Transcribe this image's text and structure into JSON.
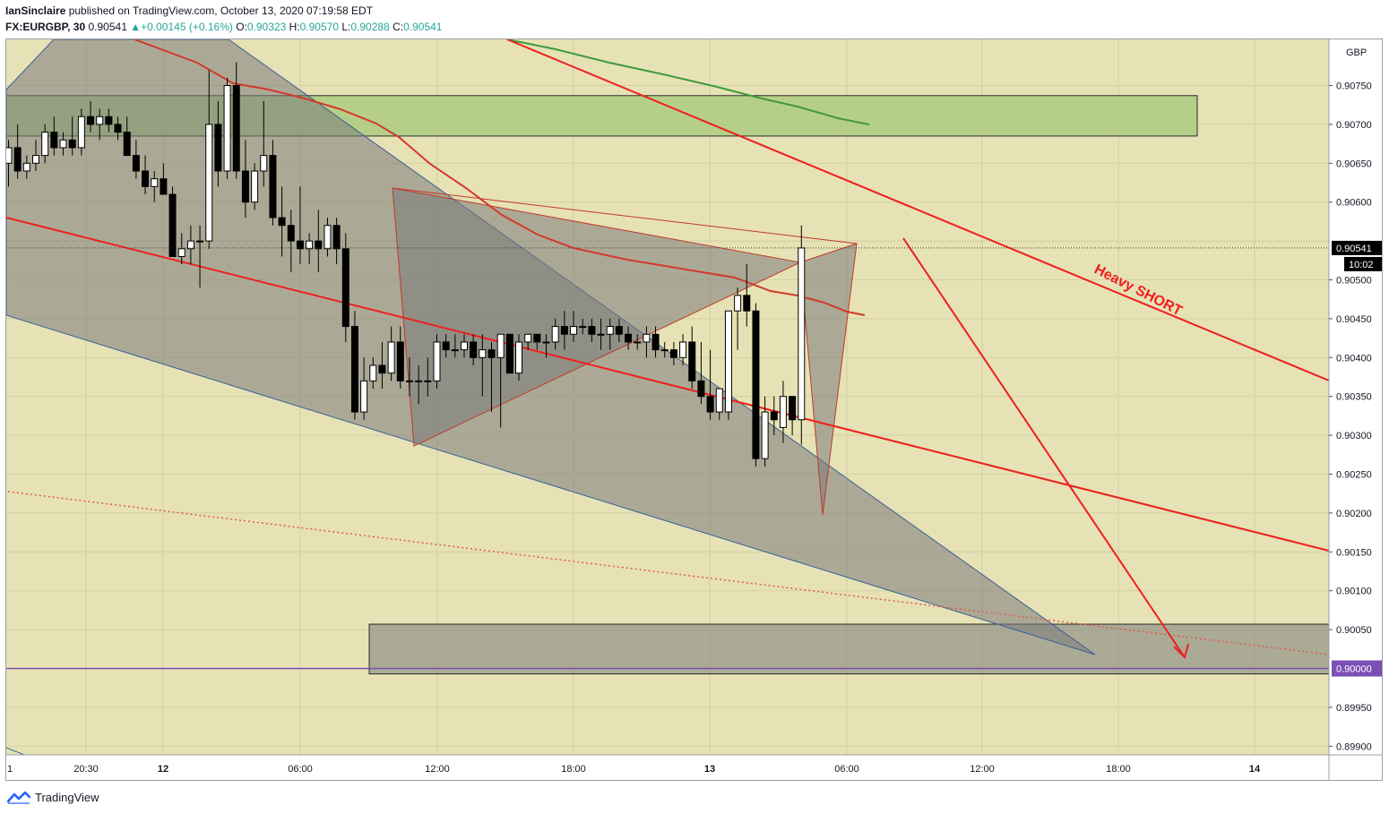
{
  "header": {
    "author": "IanSinclaire",
    "published": " published on TradingView.com, October 13, 2020 07:19:58 EDT",
    "symbol": "FX:EURGBP, 30",
    "last": "0.90541",
    "arrow": "▲",
    "change": "+0.00145 (+0.16%)",
    "o_label": "O:",
    "o_value": "0.90323",
    "h_label": "H:",
    "h_value": "0.90570",
    "l_label": "L:",
    "l_value": "0.90288",
    "c_label": "C:",
    "c_value": "0.90541"
  },
  "footer": {
    "brand": "TradingView"
  },
  "colors": {
    "background": "#e6e2b5",
    "grid": "#d3cfa5",
    "bull_candle": "#ffffff",
    "bear_candle": "#000000",
    "ma_red": "#d3392e",
    "ma_green": "#3f9a3c",
    "trend_red": "#f01e1e",
    "pattern_fill": "#7a7a7a",
    "supply_zone": "#a5c87a",
    "demand_zone": "#8c8c84",
    "level_purple": "#7b4fb5"
  },
  "chart_data": {
    "type": "candlestick",
    "symbol": "FX:EURGBP",
    "timeframe": "30",
    "currency_label": "GBP",
    "x_ticks": [
      "1",
      "20:30",
      "12",
      "06:00",
      "12:00",
      "18:00",
      "13",
      "06:00",
      "12:00",
      "18:00",
      "14"
    ],
    "y_ticks": [
      "0.90750",
      "0.90700",
      "0.90650",
      "0.90600",
      "0.90500",
      "0.90450",
      "0.90400",
      "0.90350",
      "0.90300",
      "0.90250",
      "0.90200",
      "0.90150",
      "0.90100",
      "0.90050",
      "0.89950",
      "0.89900"
    ],
    "ylim": [
      0.89885,
      0.90805
    ],
    "last_price": {
      "value": "0.90541",
      "countdown": "10:02"
    },
    "level_label": "0.90000",
    "annotation": "Heavy SHORT",
    "candles": [
      {
        "o": 0.9065,
        "h": 0.9068,
        "l": 0.9062,
        "c": 0.9067
      },
      {
        "o": 0.9067,
        "h": 0.907,
        "l": 0.9063,
        "c": 0.9064
      },
      {
        "o": 0.9064,
        "h": 0.9066,
        "l": 0.9063,
        "c": 0.9065
      },
      {
        "o": 0.9065,
        "h": 0.9068,
        "l": 0.9064,
        "c": 0.9066
      },
      {
        "o": 0.9066,
        "h": 0.907,
        "l": 0.9065,
        "c": 0.9069
      },
      {
        "o": 0.9069,
        "h": 0.9071,
        "l": 0.9066,
        "c": 0.9067
      },
      {
        "o": 0.9067,
        "h": 0.9069,
        "l": 0.9066,
        "c": 0.9068
      },
      {
        "o": 0.9068,
        "h": 0.9071,
        "l": 0.9066,
        "c": 0.9067
      },
      {
        "o": 0.9067,
        "h": 0.9072,
        "l": 0.9066,
        "c": 0.9071
      },
      {
        "o": 0.9071,
        "h": 0.9073,
        "l": 0.9069,
        "c": 0.907
      },
      {
        "o": 0.907,
        "h": 0.9072,
        "l": 0.9068,
        "c": 0.9071
      },
      {
        "o": 0.9071,
        "h": 0.9072,
        "l": 0.9069,
        "c": 0.907
      },
      {
        "o": 0.907,
        "h": 0.9071,
        "l": 0.9068,
        "c": 0.9069
      },
      {
        "o": 0.9069,
        "h": 0.9071,
        "l": 0.9066,
        "c": 0.9066
      },
      {
        "o": 0.9066,
        "h": 0.9068,
        "l": 0.9063,
        "c": 0.9064
      },
      {
        "o": 0.9064,
        "h": 0.9066,
        "l": 0.9061,
        "c": 0.9062
      },
      {
        "o": 0.9062,
        "h": 0.9064,
        "l": 0.906,
        "c": 0.9063
      },
      {
        "o": 0.9063,
        "h": 0.9065,
        "l": 0.9061,
        "c": 0.9061
      },
      {
        "o": 0.9061,
        "h": 0.9062,
        "l": 0.9053,
        "c": 0.9053
      },
      {
        "o": 0.9053,
        "h": 0.9056,
        "l": 0.9052,
        "c": 0.9054
      },
      {
        "o": 0.9054,
        "h": 0.9057,
        "l": 0.9052,
        "c": 0.9055
      },
      {
        "o": 0.9055,
        "h": 0.9057,
        "l": 0.9049,
        "c": 0.9055
      },
      {
        "o": 0.9055,
        "h": 0.9077,
        "l": 0.9054,
        "c": 0.907
      },
      {
        "o": 0.907,
        "h": 0.9073,
        "l": 0.9062,
        "c": 0.9064
      },
      {
        "o": 0.9064,
        "h": 0.9076,
        "l": 0.9063,
        "c": 0.9075
      },
      {
        "o": 0.9075,
        "h": 0.9078,
        "l": 0.9063,
        "c": 0.9064
      },
      {
        "o": 0.9064,
        "h": 0.9068,
        "l": 0.9058,
        "c": 0.906
      },
      {
        "o": 0.906,
        "h": 0.9065,
        "l": 0.9059,
        "c": 0.9064
      },
      {
        "o": 0.9064,
        "h": 0.9073,
        "l": 0.9062,
        "c": 0.9066
      },
      {
        "o": 0.9066,
        "h": 0.9068,
        "l": 0.9057,
        "c": 0.9058
      },
      {
        "o": 0.9058,
        "h": 0.9062,
        "l": 0.9053,
        "c": 0.9057
      },
      {
        "o": 0.9057,
        "h": 0.9059,
        "l": 0.9051,
        "c": 0.9055
      },
      {
        "o": 0.9055,
        "h": 0.9062,
        "l": 0.9052,
        "c": 0.9054
      },
      {
        "o": 0.9054,
        "h": 0.9056,
        "l": 0.9052,
        "c": 0.9055
      },
      {
        "o": 0.9055,
        "h": 0.9059,
        "l": 0.9051,
        "c": 0.9054
      },
      {
        "o": 0.9054,
        "h": 0.9058,
        "l": 0.9053,
        "c": 0.9057
      },
      {
        "o": 0.9057,
        "h": 0.9058,
        "l": 0.9052,
        "c": 0.9054
      },
      {
        "o": 0.9054,
        "h": 0.9056,
        "l": 0.9042,
        "c": 0.9044
      },
      {
        "o": 0.9044,
        "h": 0.9046,
        "l": 0.9032,
        "c": 0.9033
      },
      {
        "o": 0.9033,
        "h": 0.904,
        "l": 0.9032,
        "c": 0.9037
      },
      {
        "o": 0.9037,
        "h": 0.904,
        "l": 0.9036,
        "c": 0.9039
      },
      {
        "o": 0.9039,
        "h": 0.9042,
        "l": 0.9036,
        "c": 0.9038
      },
      {
        "o": 0.9038,
        "h": 0.9044,
        "l": 0.9037,
        "c": 0.9042
      },
      {
        "o": 0.9042,
        "h": 0.9044,
        "l": 0.9036,
        "c": 0.9037
      },
      {
        "o": 0.9037,
        "h": 0.904,
        "l": 0.9035,
        "c": 0.9037
      },
      {
        "o": 0.9037,
        "h": 0.9039,
        "l": 0.9034,
        "c": 0.9037
      },
      {
        "o": 0.9037,
        "h": 0.904,
        "l": 0.9035,
        "c": 0.9037
      },
      {
        "o": 0.9037,
        "h": 0.9043,
        "l": 0.9036,
        "c": 0.9042
      },
      {
        "o": 0.9042,
        "h": 0.9043,
        "l": 0.904,
        "c": 0.9041
      },
      {
        "o": 0.9041,
        "h": 0.9043,
        "l": 0.904,
        "c": 0.9041
      },
      {
        "o": 0.9041,
        "h": 0.9043,
        "l": 0.904,
        "c": 0.9042
      },
      {
        "o": 0.9042,
        "h": 0.9043,
        "l": 0.9039,
        "c": 0.904
      },
      {
        "o": 0.904,
        "h": 0.9043,
        "l": 0.9035,
        "c": 0.9041
      },
      {
        "o": 0.9041,
        "h": 0.9042,
        "l": 0.9033,
        "c": 0.904
      },
      {
        "o": 0.904,
        "h": 0.9043,
        "l": 0.9031,
        "c": 0.9043
      },
      {
        "o": 0.9043,
        "h": 0.9043,
        "l": 0.9038,
        "c": 0.9038
      },
      {
        "o": 0.9038,
        "h": 0.9043,
        "l": 0.9037,
        "c": 0.9042
      },
      {
        "o": 0.9042,
        "h": 0.9043,
        "l": 0.9041,
        "c": 0.9043
      },
      {
        "o": 0.9043,
        "h": 0.9043,
        "l": 0.9041,
        "c": 0.9042
      },
      {
        "o": 0.9042,
        "h": 0.9043,
        "l": 0.904,
        "c": 0.9042
      },
      {
        "o": 0.9042,
        "h": 0.9045,
        "l": 0.9041,
        "c": 0.9044
      },
      {
        "o": 0.9044,
        "h": 0.9046,
        "l": 0.9041,
        "c": 0.9043
      },
      {
        "o": 0.9043,
        "h": 0.9046,
        "l": 0.9042,
        "c": 0.9044
      },
      {
        "o": 0.9044,
        "h": 0.9045,
        "l": 0.9043,
        "c": 0.9044
      },
      {
        "o": 0.9044,
        "h": 0.9045,
        "l": 0.9042,
        "c": 0.9043
      },
      {
        "o": 0.9043,
        "h": 0.9045,
        "l": 0.9041,
        "c": 0.9043
      },
      {
        "o": 0.9043,
        "h": 0.9045,
        "l": 0.9041,
        "c": 0.9044
      },
      {
        "o": 0.9044,
        "h": 0.9045,
        "l": 0.9042,
        "c": 0.9043
      },
      {
        "o": 0.9043,
        "h": 0.9044,
        "l": 0.9041,
        "c": 0.9042
      },
      {
        "o": 0.9042,
        "h": 0.9043,
        "l": 0.9041,
        "c": 0.9042
      },
      {
        "o": 0.9042,
        "h": 0.9044,
        "l": 0.904,
        "c": 0.9043
      },
      {
        "o": 0.9043,
        "h": 0.9044,
        "l": 0.904,
        "c": 0.9041
      },
      {
        "o": 0.9041,
        "h": 0.9042,
        "l": 0.904,
        "c": 0.9041
      },
      {
        "o": 0.9041,
        "h": 0.9042,
        "l": 0.9039,
        "c": 0.904
      },
      {
        "o": 0.904,
        "h": 0.9043,
        "l": 0.9039,
        "c": 0.9042
      },
      {
        "o": 0.9042,
        "h": 0.9044,
        "l": 0.9036,
        "c": 0.9037
      },
      {
        "o": 0.9037,
        "h": 0.9042,
        "l": 0.9034,
        "c": 0.9035
      },
      {
        "o": 0.9035,
        "h": 0.9041,
        "l": 0.9032,
        "c": 0.9033
      },
      {
        "o": 0.9033,
        "h": 0.9036,
        "l": 0.9032,
        "c": 0.9036
      },
      {
        "o": 0.9033,
        "h": 0.9046,
        "l": 0.9032,
        "c": 0.9046
      },
      {
        "o": 0.9046,
        "h": 0.9049,
        "l": 0.9041,
        "c": 0.9048
      },
      {
        "o": 0.9048,
        "h": 0.9052,
        "l": 0.9044,
        "c": 0.9046
      },
      {
        "o": 0.9046,
        "h": 0.9047,
        "l": 0.9026,
        "c": 0.9027
      },
      {
        "o": 0.9027,
        "h": 0.9035,
        "l": 0.9026,
        "c": 0.9033
      },
      {
        "o": 0.9033,
        "h": 0.9035,
        "l": 0.903,
        "c": 0.9032
      },
      {
        "o": 0.9031,
        "h": 0.9037,
        "l": 0.9029,
        "c": 0.9035
      },
      {
        "o": 0.9035,
        "h": 0.9035,
        "l": 0.903,
        "c": 0.9032
      },
      {
        "o": 0.9032,
        "h": 0.9057,
        "l": 0.90288,
        "c": 0.90541
      }
    ]
  }
}
